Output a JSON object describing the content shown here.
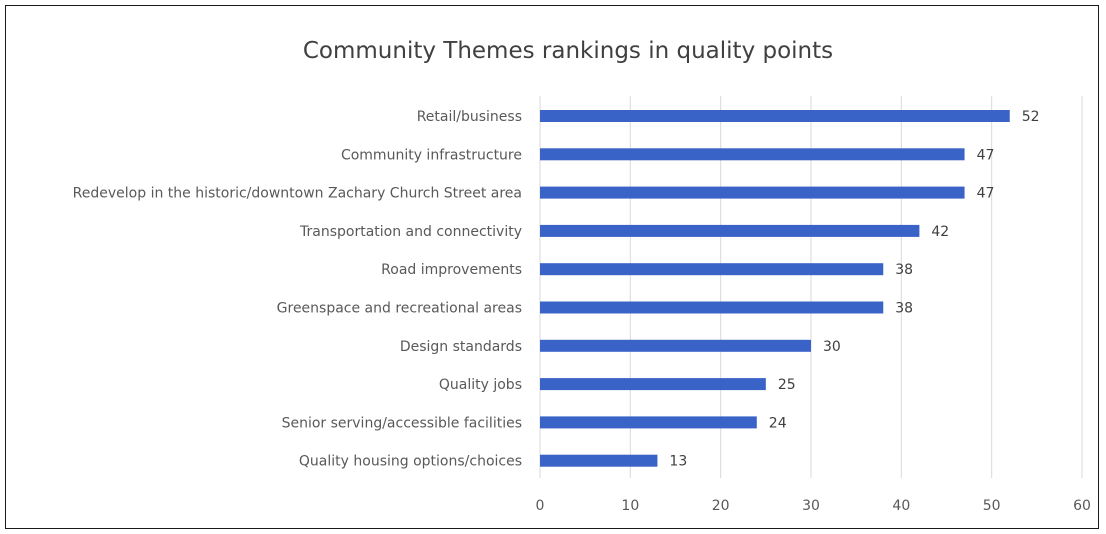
{
  "chart_data": {
    "type": "bar",
    "orientation": "horizontal",
    "title": "Community Themes rankings in quality points",
    "xlabel": "",
    "ylabel": "",
    "categories": [
      "Retail/business",
      "Community infrastructure",
      "Redevelop in the historic/downtown Zachary Church Street area",
      "Transportation and connectivity",
      "Road improvements",
      "Greenspace and recreational areas",
      "Design standards",
      "Quality jobs",
      "Senior serving/accessible facilities",
      "Quality housing options/choices"
    ],
    "values": [
      52,
      47,
      47,
      42,
      38,
      38,
      30,
      25,
      24,
      13
    ],
    "xlim": [
      0,
      60
    ],
    "xticks": [
      0,
      10,
      20,
      30,
      40,
      50,
      60
    ],
    "grid": "vertical",
    "legend": "none",
    "bar_color": "#3a63c8",
    "data_labels": true
  }
}
